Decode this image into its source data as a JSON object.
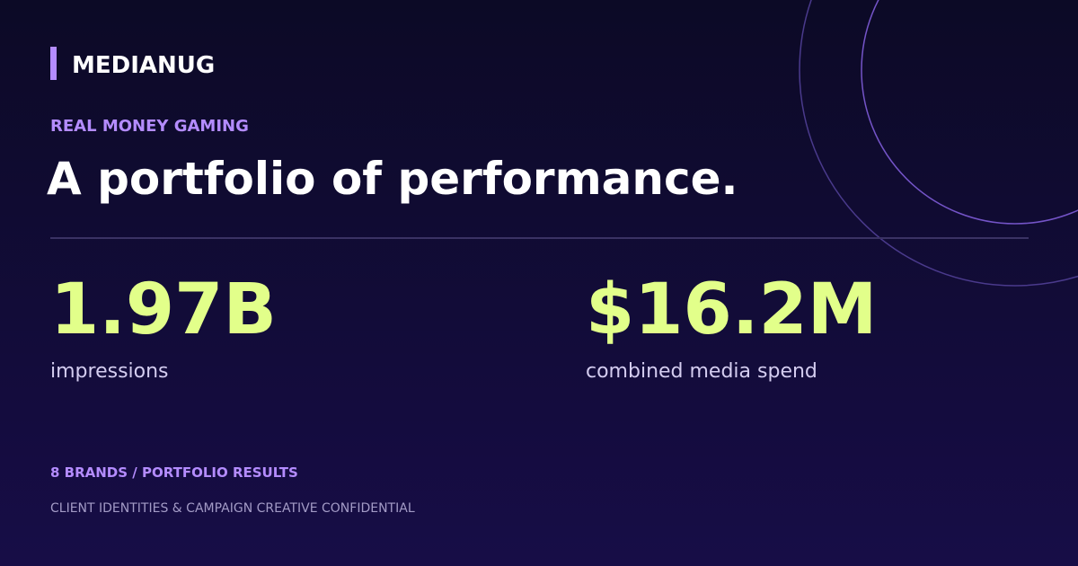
{
  "brand": "MEDIANUG",
  "eyebrow": "REAL MONEY GAMING",
  "headline": "A portfolio of performance.",
  "stats": [
    {
      "value": "1.97B",
      "label": "impressions"
    },
    {
      "value": "$16.2M",
      "label": "combined media spend"
    }
  ],
  "footer": {
    "summary": "8 BRANDS / PORTFOLIO RESULTS",
    "note": "CLIENT IDENTITIES & CAMPAIGN CREATIVE CONFIDENTIAL"
  }
}
